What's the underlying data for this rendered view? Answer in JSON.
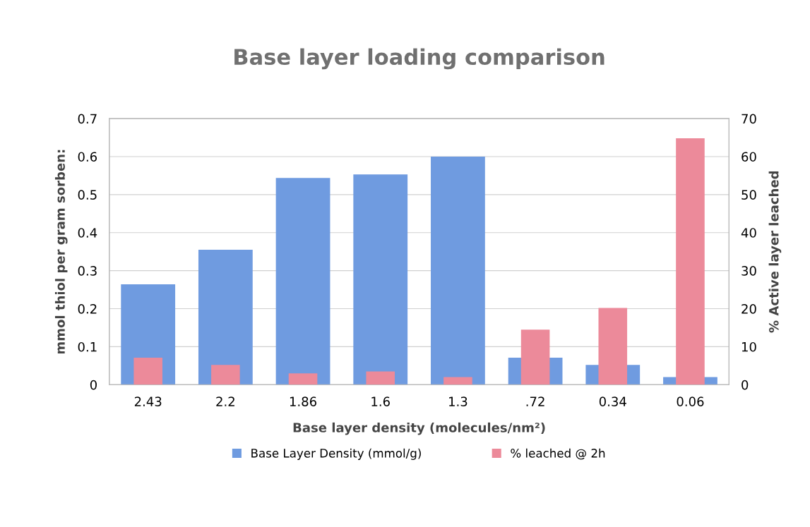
{
  "chart_data": {
    "type": "bar",
    "title": "Base layer loading comparison",
    "xlabel": "Base layer density (molecules/nm²)",
    "ylabel": "mmol thiol per gram sorben:",
    "y2label": "% Active layer leached",
    "categories": [
      "2.43",
      "2.2",
      "1.86",
      "1.6",
      "1.3",
      ".72",
      "0.34",
      "0.06"
    ],
    "series": [
      {
        "name": "Base Layer Density (mmol/g)",
        "color": "#6f9be0",
        "values": [
          0.264,
          0.355,
          0.544,
          0.553,
          0.6,
          0.071,
          0.052,
          0.02
        ]
      },
      {
        "name": "% leached @ 2h",
        "color": "#ec8a9a",
        "axis": "y2",
        "values": [
          7.1,
          5.2,
          3.0,
          3.5,
          2.0,
          14.5,
          20.2,
          64.8
        ]
      }
    ],
    "ylim": [
      0,
      0.7
    ],
    "yticks": [
      0,
      0.1,
      0.2,
      0.3,
      0.4,
      0.5,
      0.6,
      0.7
    ],
    "y2lim": [
      0,
      70
    ],
    "y2ticks": [
      0,
      10,
      20,
      30,
      40,
      50,
      60,
      70
    ],
    "grid": "y",
    "legend": "bottom"
  }
}
